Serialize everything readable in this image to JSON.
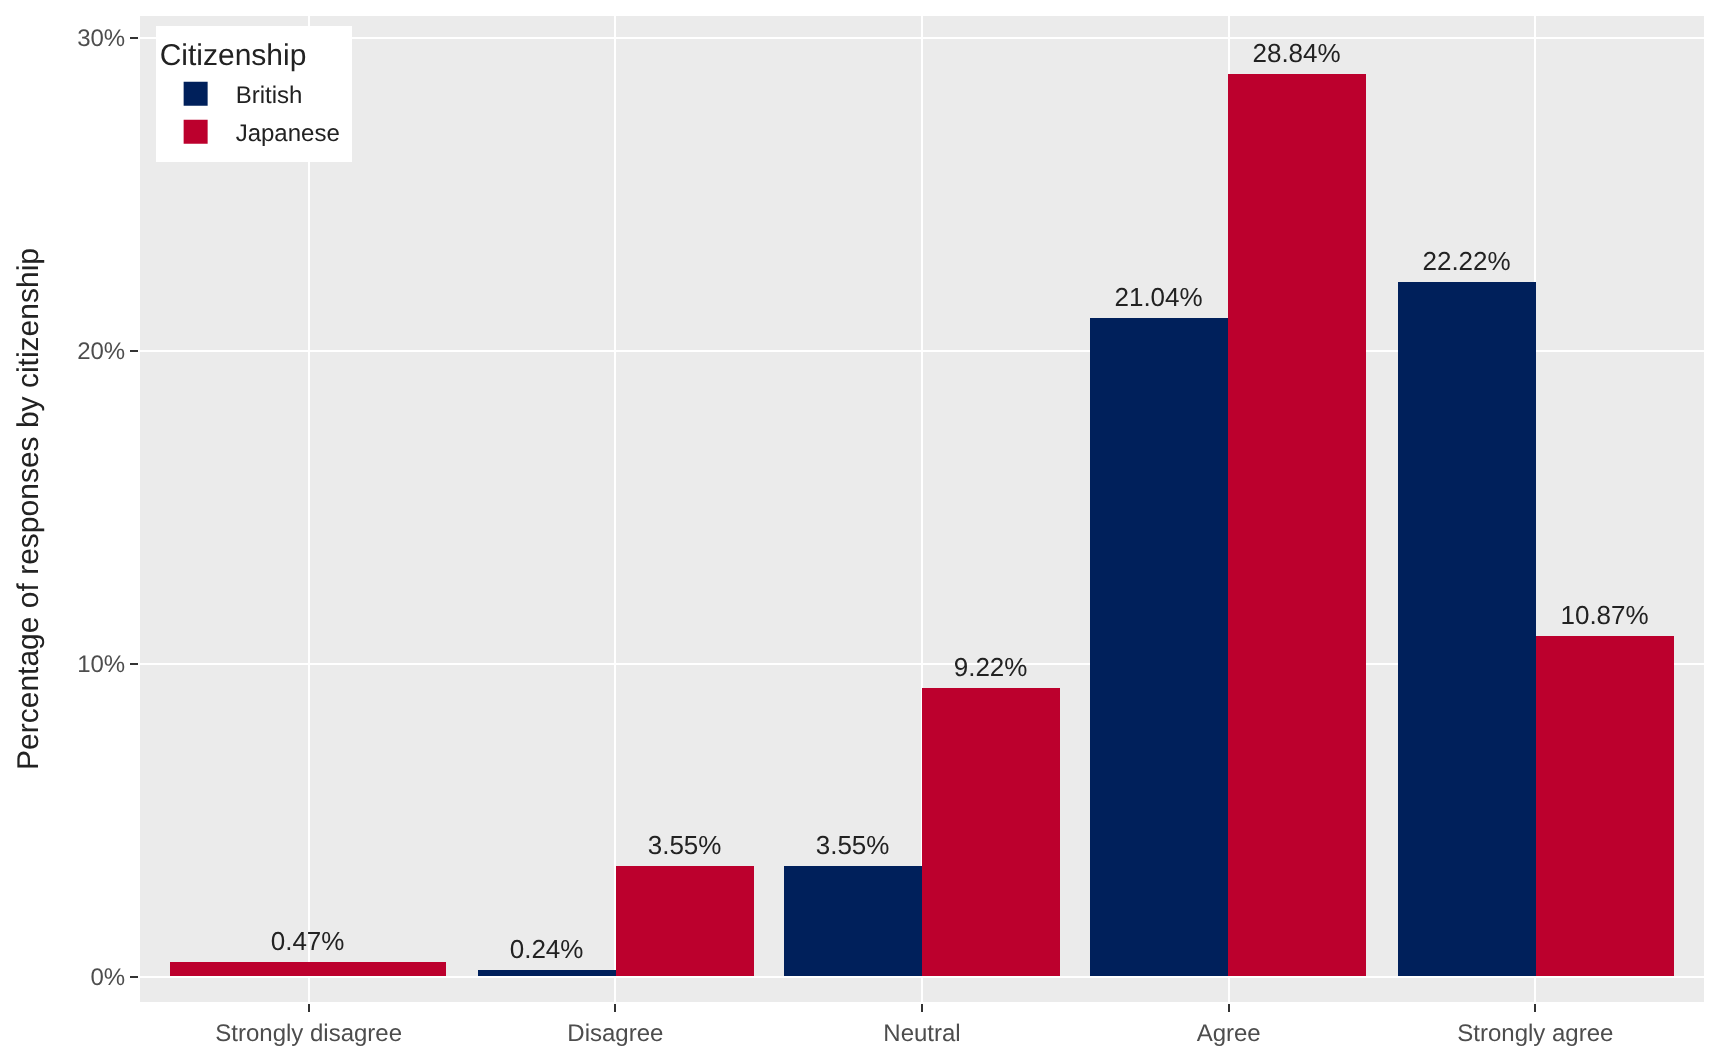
{
  "chart_data": {
    "type": "bar",
    "ylabel": "Percentage of responses by citizenship",
    "legend_title": "Citizenship",
    "categories": [
      "Strongly disagree",
      "Disagree",
      "Neutral",
      "Agree",
      "Strongly agree"
    ],
    "series": [
      {
        "name": "British",
        "color": "#00205b",
        "values": [
          null,
          0.24,
          3.55,
          21.04,
          22.22
        ],
        "value_labels": [
          null,
          "0.24%",
          "3.55%",
          "21.04%",
          "22.22%"
        ]
      },
      {
        "name": "Japanese",
        "color": "#bc002d",
        "values": [
          0.47,
          3.55,
          9.22,
          28.84,
          10.87
        ],
        "value_labels": [
          "0.47%",
          "3.55%",
          "9.22%",
          "28.84%",
          "10.87%"
        ]
      }
    ],
    "ylim": [
      -0.8,
      30.7
    ],
    "yticks": [
      {
        "value": 0,
        "label": "0%"
      },
      {
        "value": 10,
        "label": "10%"
      },
      {
        "value": 20,
        "label": "20%"
      },
      {
        "value": 30,
        "label": "30%"
      }
    ],
    "grid": true,
    "legend": "top left"
  }
}
